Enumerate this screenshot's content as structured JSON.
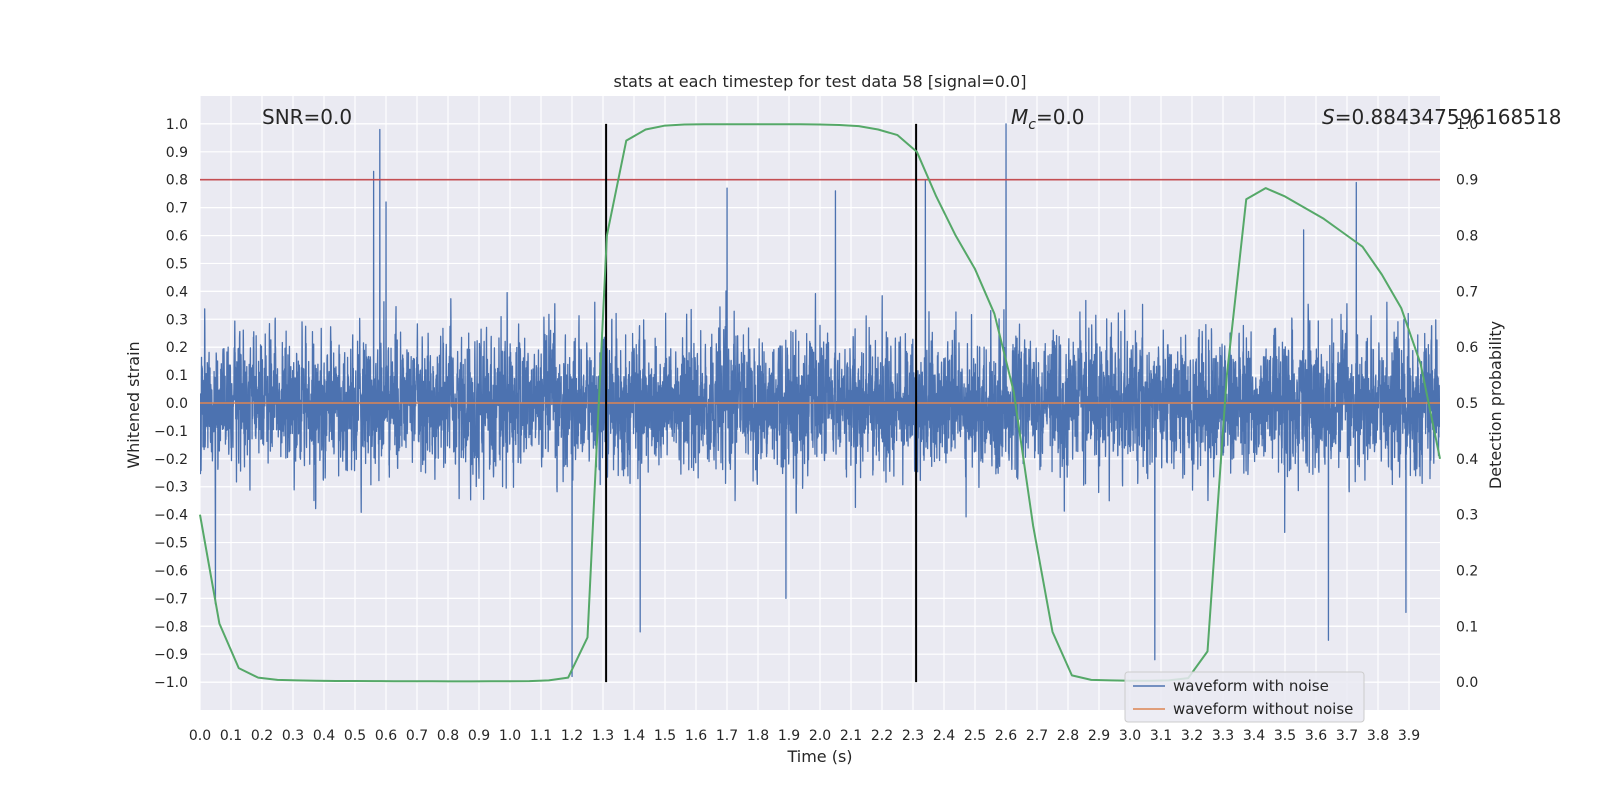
{
  "chart_data": {
    "type": "line",
    "title": "stats at each timestep for test data 58 [signal=0.0]",
    "xlabel": "Time (s)",
    "ylabel": "Whitened strain",
    "ylabel_right": "Detection probability",
    "xlim": [
      0.0,
      4.0
    ],
    "ylim": [
      -1.1,
      1.1
    ],
    "ylim_right": [
      -0.05,
      1.05
    ],
    "x_ticks": [
      0.0,
      0.1,
      0.2,
      0.3,
      0.4,
      0.5,
      0.6,
      0.7,
      0.8,
      0.9,
      1.0,
      1.1,
      1.2,
      1.3,
      1.4,
      1.5,
      1.6,
      1.7,
      1.8,
      1.9,
      2.0,
      2.1,
      2.2,
      2.3,
      2.4,
      2.5,
      2.6,
      2.7,
      2.8,
      2.9,
      3.0,
      3.1,
      3.2,
      3.3,
      3.4,
      3.5,
      3.6,
      3.7,
      3.8,
      3.9
    ],
    "y_ticks": [
      -1.0,
      -0.9,
      -0.8,
      -0.7,
      -0.6,
      -0.5,
      -0.4,
      -0.3,
      -0.2,
      -0.1,
      0.0,
      0.1,
      0.2,
      0.3,
      0.4,
      0.5,
      0.6,
      0.7,
      0.8,
      0.9,
      1.0
    ],
    "y_ticks_right": [
      0.0,
      0.1,
      0.2,
      0.3,
      0.4,
      0.5,
      0.6,
      0.7,
      0.8,
      0.9,
      1.0
    ],
    "grid": true,
    "legend_position": "lower-right",
    "annotations": [
      {
        "text": "SNR=0.0"
      },
      {
        "text_main": "M",
        "text_sub": "c",
        "text_rest": "=0.0"
      },
      {
        "text_main": "S",
        "text_rest": "=0.884347596168518"
      }
    ],
    "threshold_line": {
      "y_right": 0.9,
      "color": "#c44e52"
    },
    "vertical_lines": [
      1.31,
      2.31
    ],
    "series": [
      {
        "name": "waveform with noise",
        "color": "#4c72b0",
        "axis": "left",
        "sample_rate": 2048,
        "spikes": [
          [
            0.58,
            0.98
          ],
          [
            0.56,
            0.83
          ],
          [
            0.6,
            0.72
          ],
          [
            1.2,
            -0.98
          ],
          [
            1.42,
            -0.82
          ],
          [
            1.7,
            0.77
          ],
          [
            1.89,
            -0.7
          ],
          [
            2.6,
            1.0
          ],
          [
            2.34,
            0.8
          ],
          [
            3.08,
            -0.92
          ],
          [
            3.73,
            0.79
          ],
          [
            3.64,
            -0.85
          ],
          [
            3.89,
            -0.75
          ],
          [
            0.05,
            -0.72
          ],
          [
            2.05,
            0.76
          ],
          [
            3.56,
            0.62
          ]
        ]
      },
      {
        "name": "waveform without noise",
        "color": "#dd8452",
        "axis": "left",
        "x": [
          0.0,
          4.0
        ],
        "values": [
          0.0,
          0.0
        ]
      },
      {
        "name": "",
        "color": "#55a868",
        "axis": "right",
        "x": [
          0.0,
          0.0625,
          0.125,
          0.1875,
          0.25,
          0.3125,
          0.375,
          0.4375,
          0.5,
          0.5625,
          0.625,
          0.6875,
          0.75,
          0.8125,
          0.875,
          0.9375,
          1.0,
          1.0625,
          1.125,
          1.1875,
          1.25,
          1.3125,
          1.375,
          1.4375,
          1.5,
          1.5625,
          1.625,
          1.6875,
          1.75,
          1.8125,
          1.875,
          1.9375,
          2.0,
          2.0625,
          2.125,
          2.1875,
          2.25,
          2.3125,
          2.375,
          2.4375,
          2.5,
          2.5625,
          2.625,
          2.6875,
          2.75,
          2.8125,
          2.875,
          2.9375,
          3.0,
          3.0625,
          3.125,
          3.1875,
          3.25,
          3.3125,
          3.375,
          3.4375,
          3.5,
          3.5625,
          3.625,
          3.6875,
          3.75,
          3.8125,
          3.875,
          3.9375,
          4.0
        ],
        "values": [
          0.3,
          0.105,
          0.025,
          0.008,
          0.004,
          0.003,
          0.0025,
          0.002,
          0.002,
          0.0018,
          0.0016,
          0.0015,
          0.0014,
          0.0013,
          0.0013,
          0.0014,
          0.0015,
          0.0018,
          0.003,
          0.008,
          0.08,
          0.8,
          0.97,
          0.99,
          0.997,
          0.999,
          0.9993,
          0.9994,
          0.9995,
          0.9995,
          0.9994,
          0.9993,
          0.999,
          0.998,
          0.996,
          0.99,
          0.98,
          0.95,
          0.87,
          0.8,
          0.74,
          0.66,
          0.52,
          0.28,
          0.09,
          0.012,
          0.004,
          0.003,
          0.0025,
          0.0025,
          0.003,
          0.007,
          0.055,
          0.55,
          0.865,
          0.885,
          0.87,
          0.85,
          0.83,
          0.805,
          0.78,
          0.73,
          0.67,
          0.57,
          0.4
        ]
      }
    ]
  }
}
